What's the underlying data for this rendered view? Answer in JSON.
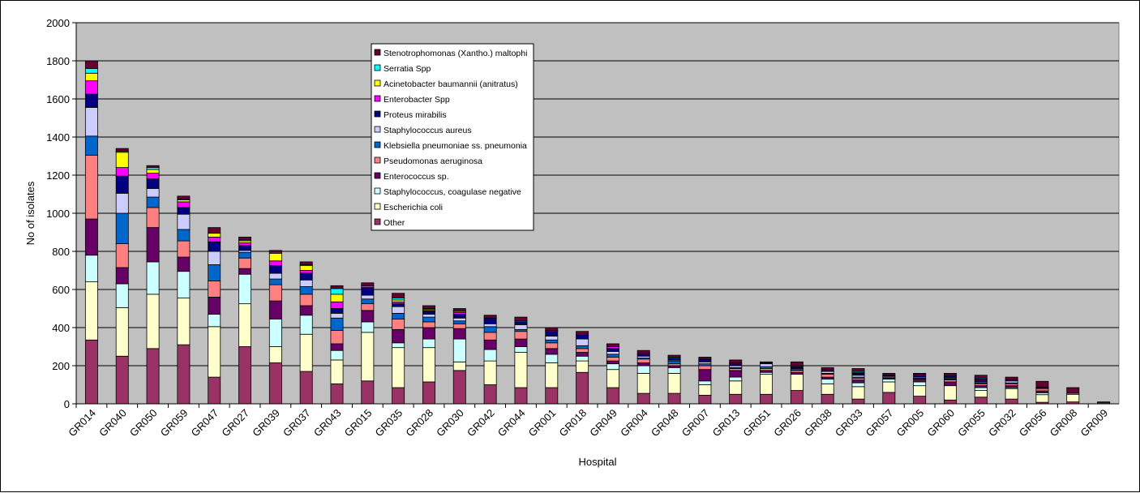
{
  "chart_data": {
    "type": "bar",
    "stacked": true,
    "title": "",
    "xlabel": "Hospital",
    "ylabel": "No of isolates",
    "ylim": [
      0,
      2000
    ],
    "yticks": [
      0,
      200,
      400,
      600,
      800,
      1000,
      1200,
      1400,
      1600,
      1800,
      2000
    ],
    "grid": true,
    "plot_background": "#c0c0c0",
    "legend_position": "top-center",
    "categories": [
      "GR014",
      "GR040",
      "GR050",
      "GR059",
      "GR047",
      "GR027",
      "GR039",
      "GR037",
      "GR043",
      "GR015",
      "GR035",
      "GR028",
      "GR030",
      "GR042",
      "GR044",
      "GR001",
      "GR018",
      "GR049",
      "GR004",
      "GR048",
      "GR007",
      "GR013",
      "GR051",
      "GR026",
      "GR038",
      "GR033",
      "GR057",
      "GR005",
      "GR060",
      "GR055",
      "GR032",
      "GR056",
      "GR008",
      "GR009"
    ],
    "series": [
      {
        "name": "Other",
        "color": "#993366",
        "values": [
          335,
          250,
          290,
          310,
          140,
          300,
          215,
          170,
          105,
          120,
          85,
          115,
          175,
          100,
          85,
          85,
          165,
          85,
          55,
          55,
          45,
          50,
          50,
          70,
          50,
          25,
          60,
          40,
          20,
          35,
          25,
          8,
          10,
          2
        ]
      },
      {
        "name": "Escherichia coli",
        "color": "#ffffcc",
        "values": [
          305,
          255,
          285,
          245,
          265,
          225,
          85,
          195,
          125,
          255,
          210,
          180,
          45,
          125,
          185,
          130,
          60,
          95,
          105,
          105,
          55,
          70,
          105,
          85,
          55,
          65,
          55,
          55,
          75,
          35,
          55,
          40,
          40,
          5
        ]
      },
      {
        "name": "Staphylococcus, coagulase negative",
        "color": "#ccffff",
        "values": [
          140,
          125,
          170,
          140,
          65,
          155,
          145,
          100,
          50,
          55,
          25,
          45,
          120,
          60,
          30,
          45,
          25,
          30,
          40,
          30,
          20,
          20,
          10,
          0,
          25,
          20,
          15,
          20,
          0,
          15,
          5,
          10,
          5,
          0
        ]
      },
      {
        "name": "Enterococcus sp.",
        "color": "#660066",
        "values": [
          190,
          85,
          180,
          75,
          90,
          30,
          95,
          50,
          35,
          60,
          70,
          60,
          55,
          50,
          40,
          30,
          20,
          15,
          15,
          10,
          60,
          35,
          10,
          10,
          10,
          15,
          5,
          10,
          20,
          10,
          10,
          10,
          0,
          0
        ]
      },
      {
        "name": "Pseudomonas aeruginosa",
        "color": "#ff8080",
        "values": [
          335,
          125,
          105,
          85,
          85,
          55,
          85,
          60,
          70,
          35,
          55,
          30,
          25,
          40,
          40,
          30,
          20,
          20,
          20,
          10,
          20,
          10,
          10,
          10,
          15,
          10,
          5,
          5,
          10,
          10,
          10,
          10,
          0,
          0
        ]
      },
      {
        "name": "Klebsiella pneumoniae ss. pneumonia",
        "color": "#0066cc",
        "values": [
          100,
          160,
          55,
          60,
          85,
          30,
          30,
          40,
          65,
          25,
          30,
          25,
          15,
          30,
          10,
          15,
          15,
          15,
          5,
          15,
          10,
          5,
          10,
          5,
          5,
          5,
          0,
          5,
          5,
          5,
          5,
          0,
          0,
          0
        ]
      },
      {
        "name": "Staphylococcus aureus",
        "color": "#ccccff",
        "values": [
          150,
          105,
          45,
          80,
          70,
          10,
          30,
          35,
          25,
          20,
          35,
          15,
          15,
          15,
          25,
          20,
          35,
          15,
          10,
          5,
          10,
          10,
          15,
          5,
          10,
          10,
          5,
          5,
          5,
          5,
          10,
          5,
          0,
          0
        ]
      },
      {
        "name": "Proteus mirabilis",
        "color": "#000080",
        "values": [
          70,
          90,
          50,
          35,
          50,
          25,
          40,
          35,
          25,
          40,
          15,
          15,
          20,
          30,
          15,
          25,
          20,
          15,
          10,
          10,
          15,
          10,
          5,
          10,
          5,
          10,
          5,
          10,
          10,
          10,
          5,
          5,
          0,
          0
        ]
      },
      {
        "name": "Enterobacter Spp",
        "color": "#ff00ff",
        "values": [
          70,
          45,
          30,
          30,
          25,
          15,
          25,
          15,
          35,
          10,
          10,
          5,
          10,
          0,
          0,
          5,
          5,
          10,
          5,
          0,
          0,
          5,
          0,
          5,
          5,
          5,
          0,
          5,
          5,
          5,
          5,
          0,
          0,
          0
        ]
      },
      {
        "name": "Acinetobacter baumannii (anitratus)",
        "color": "#ffff00",
        "values": [
          40,
          80,
          20,
          10,
          20,
          10,
          40,
          25,
          40,
          0,
          10,
          5,
          5,
          0,
          0,
          0,
          0,
          0,
          0,
          0,
          0,
          0,
          0,
          0,
          0,
          0,
          0,
          0,
          0,
          0,
          0,
          0,
          0,
          0
        ]
      },
      {
        "name": "Serratia Spp",
        "color": "#00ffff",
        "values": [
          25,
          5,
          10,
          5,
          0,
          5,
          5,
          5,
          30,
          0,
          10,
          5,
          5,
          0,
          5,
          0,
          0,
          0,
          0,
          5,
          0,
          0,
          0,
          0,
          0,
          5,
          0,
          0,
          0,
          5,
          0,
          0,
          0,
          0
        ]
      },
      {
        "name": "Stenotrophomonas (Xantho.) maltophi",
        "color": "#660033",
        "values": [
          40,
          15,
          10,
          15,
          30,
          15,
          10,
          15,
          15,
          15,
          25,
          15,
          10,
          15,
          20,
          15,
          15,
          15,
          15,
          10,
          10,
          15,
          5,
          20,
          10,
          15,
          10,
          5,
          10,
          15,
          10,
          30,
          30,
          3
        ]
      }
    ]
  }
}
